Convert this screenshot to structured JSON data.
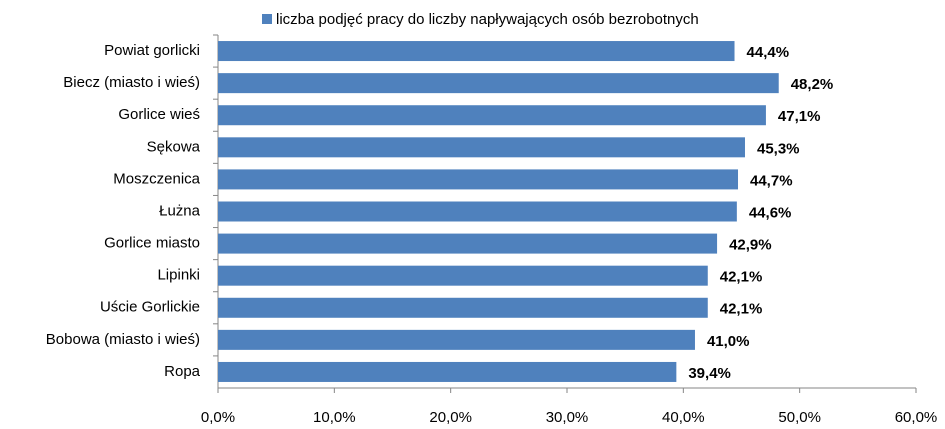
{
  "chart_data": {
    "type": "bar",
    "orientation": "horizontal",
    "categories": [
      "Powiat gorlicki",
      "Biecz (miasto  i wieś)",
      "Gorlice wieś",
      "Sękowa",
      "Moszczenica",
      "Łużna",
      "Gorlice miasto",
      "Lipinki",
      "Uście Gorlickie",
      "Bobowa (miasto  i wieś)",
      "Ropa"
    ],
    "series": [
      {
        "name": "liczba podjęć pracy do liczby napływających osób bezrobotnych",
        "color": "#4f81bd",
        "values": [
          44.4,
          48.2,
          47.1,
          45.3,
          44.7,
          44.6,
          42.9,
          42.1,
          42.1,
          41.0,
          39.4
        ],
        "value_labels": [
          "44,4%",
          "48,2%",
          "47,1%",
          "45,3%",
          "44,7%",
          "44,6%",
          "42,9%",
          "42,1%",
          "42,1%",
          "41,0%",
          "39,4%"
        ]
      }
    ],
    "xlim": [
      0,
      60
    ],
    "xticks": [
      {
        "value": 0,
        "label": "0,0%"
      },
      {
        "value": 10,
        "label": "10,0%"
      },
      {
        "value": 20,
        "label": "20,0%"
      },
      {
        "value": 30,
        "label": "30,0%"
      },
      {
        "value": 40,
        "label": "40,0%"
      },
      {
        "value": 50,
        "label": "50,0%"
      },
      {
        "value": 60,
        "label": "60,0%"
      }
    ],
    "legend": "top"
  }
}
